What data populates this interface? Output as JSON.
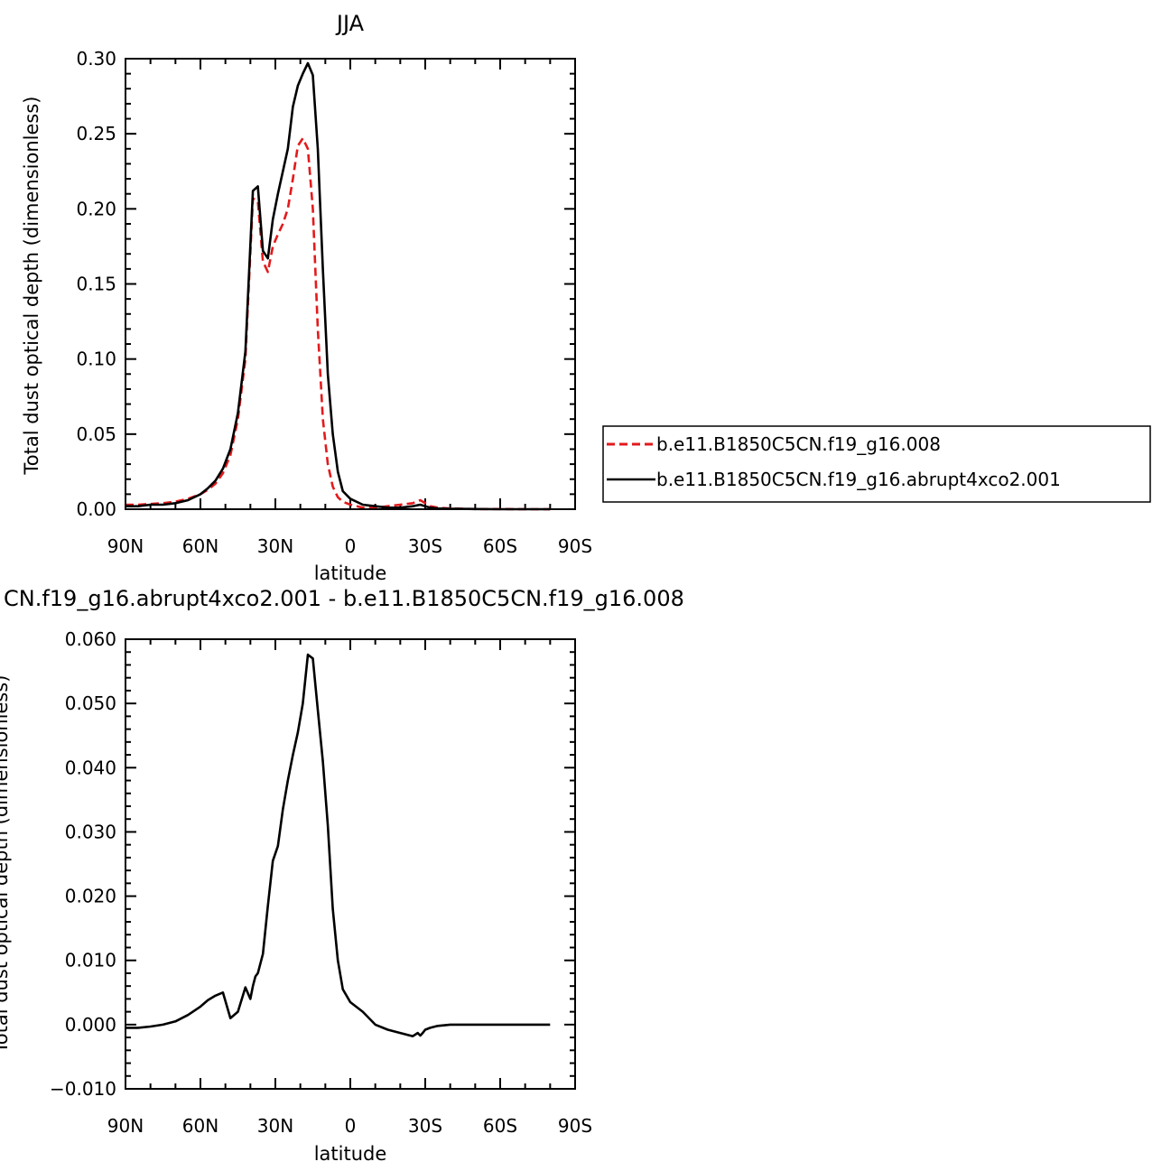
{
  "chart_data": [
    {
      "type": "line",
      "title": "JJA",
      "xlabel": "latitude",
      "ylabel": "Total dust optical depth (dimensionless)",
      "xlim": [
        90,
        -90
      ],
      "ylim": [
        0,
        0.3
      ],
      "x_axis": "latitude in degrees, positive = north, negative = south",
      "xticks": [
        {
          "value": 90,
          "label": "90N"
        },
        {
          "value": 60,
          "label": "60N"
        },
        {
          "value": 30,
          "label": "30N"
        },
        {
          "value": 0,
          "label": "0"
        },
        {
          "value": -30,
          "label": "30S"
        },
        {
          "value": -60,
          "label": "60S"
        },
        {
          "value": -90,
          "label": "90S"
        }
      ],
      "yticks": [
        {
          "value": 0,
          "label": "0.00"
        },
        {
          "value": 0.05,
          "label": "0.05"
        },
        {
          "value": 0.1,
          "label": "0.10"
        },
        {
          "value": 0.15,
          "label": "0.15"
        },
        {
          "value": 0.2,
          "label": "0.20"
        },
        {
          "value": 0.25,
          "label": "0.25"
        },
        {
          "value": 0.3,
          "label": "0.30"
        }
      ],
      "grid": false,
      "legend": "right, outside plot",
      "series": [
        {
          "name": "b.e11.B1850C5CN.f19_g16.008",
          "color": "#e31a1c",
          "dash": "dashed",
          "x": [
            90,
            85,
            80,
            75,
            70,
            65,
            60,
            57,
            54,
            51,
            48,
            45,
            42,
            39,
            37,
            35,
            33,
            31,
            29,
            27,
            25,
            23,
            21,
            19,
            17,
            15,
            13,
            11,
            9,
            7,
            5,
            3,
            0,
            -5,
            -10,
            -15,
            -20,
            -25,
            -28,
            -30,
            -32,
            -35,
            -40,
            -50,
            -60,
            -70,
            -80
          ],
          "y": [
            0.003,
            0.003,
            0.0035,
            0.004,
            0.005,
            0.007,
            0.01,
            0.013,
            0.017,
            0.024,
            0.036,
            0.06,
            0.1,
            0.207,
            0.205,
            0.165,
            0.158,
            0.175,
            0.183,
            0.19,
            0.2,
            0.22,
            0.242,
            0.247,
            0.24,
            0.2,
            0.12,
            0.06,
            0.03,
            0.015,
            0.008,
            0.005,
            0.003,
            0.001,
            0.001,
            0.002,
            0.003,
            0.004,
            0.006,
            0.004,
            0.002,
            0.001,
            0.0005,
            0.0001,
            0.0001,
            0.0,
            0.0
          ]
        },
        {
          "name": "b.e11.B1850C5CN.f19_g16.abrupt4xco2.001",
          "color": "#000000",
          "dash": "solid",
          "x": [
            90,
            85,
            80,
            75,
            70,
            65,
            60,
            57,
            54,
            51,
            48,
            45,
            42,
            39,
            37,
            35,
            33,
            31,
            29,
            27,
            25,
            23,
            21,
            19,
            17,
            15,
            13,
            11,
            9,
            7,
            5,
            3,
            0,
            -5,
            -10,
            -15,
            -20,
            -25,
            -28,
            -30,
            -32,
            -35,
            -40,
            -50,
            -60,
            -70,
            -80
          ],
          "y": [
            0.002,
            0.002,
            0.003,
            0.003,
            0.004,
            0.006,
            0.01,
            0.014,
            0.019,
            0.027,
            0.04,
            0.064,
            0.105,
            0.212,
            0.215,
            0.172,
            0.167,
            0.193,
            0.21,
            0.225,
            0.24,
            0.268,
            0.282,
            0.29,
            0.297,
            0.289,
            0.24,
            0.16,
            0.09,
            0.05,
            0.025,
            0.012,
            0.007,
            0.003,
            0.002,
            0.001,
            0.001,
            0.002,
            0.003,
            0.002,
            0.001,
            0.0005,
            0.0003,
            0.0001,
            0.0,
            0.0,
            0.0
          ]
        }
      ]
    },
    {
      "type": "line",
      "title": "CN.f19_g16.abrupt4xco2.001 - b.e11.B1850C5CN.f19_g16.008",
      "xlabel": "latitude",
      "ylabel": "Total dust optical depth (dimensionless)",
      "xlim": [
        90,
        -90
      ],
      "ylim": [
        -0.01,
        0.06
      ],
      "xticks": [
        {
          "value": 90,
          "label": "90N"
        },
        {
          "value": 60,
          "label": "60N"
        },
        {
          "value": 30,
          "label": "30N"
        },
        {
          "value": 0,
          "label": "0"
        },
        {
          "value": -30,
          "label": "30S"
        },
        {
          "value": -60,
          "label": "60S"
        },
        {
          "value": -90,
          "label": "90S"
        }
      ],
      "yticks": [
        {
          "value": -0.01,
          "label": "−0.010"
        },
        {
          "value": 0,
          "label": "0.000"
        },
        {
          "value": 0.01,
          "label": "0.010"
        },
        {
          "value": 0.02,
          "label": "0.020"
        },
        {
          "value": 0.03,
          "label": "0.030"
        },
        {
          "value": 0.04,
          "label": "0.040"
        },
        {
          "value": 0.05,
          "label": "0.050"
        },
        {
          "value": 0.06,
          "label": "0.060"
        }
      ],
      "grid": false,
      "series": [
        {
          "color": "#000000",
          "dash": "solid",
          "x": [
            90,
            85,
            80,
            75,
            70,
            65,
            60,
            57,
            54,
            51,
            48,
            45,
            42,
            40,
            39,
            38,
            37,
            35,
            33,
            31,
            29,
            27,
            25,
            23,
            21,
            19,
            17,
            15,
            13,
            11,
            9,
            7,
            5,
            3,
            0,
            -5,
            -10,
            -15,
            -20,
            -25,
            -27,
            -28,
            -29,
            -30,
            -32,
            -35,
            -40,
            -50,
            -60,
            -70,
            -80
          ],
          "y": [
            -0.0005,
            -0.0005,
            -0.0003,
            0.0,
            0.0005,
            0.0015,
            0.0028,
            0.0038,
            0.0045,
            0.005,
            0.001,
            0.002,
            0.0058,
            0.004,
            0.006,
            0.0075,
            0.008,
            0.011,
            0.0185,
            0.0255,
            0.0278,
            0.0335,
            0.038,
            0.042,
            0.0455,
            0.05,
            0.0576,
            0.057,
            0.049,
            0.041,
            0.031,
            0.018,
            0.01,
            0.0055,
            0.0035,
            0.002,
            0.0,
            -0.0008,
            -0.0013,
            -0.0018,
            -0.0013,
            -0.0017,
            -0.0013,
            -0.0008,
            -0.0005,
            -0.0002,
            0.0,
            0.0,
            0.0,
            0.0,
            0.0
          ]
        }
      ]
    }
  ]
}
